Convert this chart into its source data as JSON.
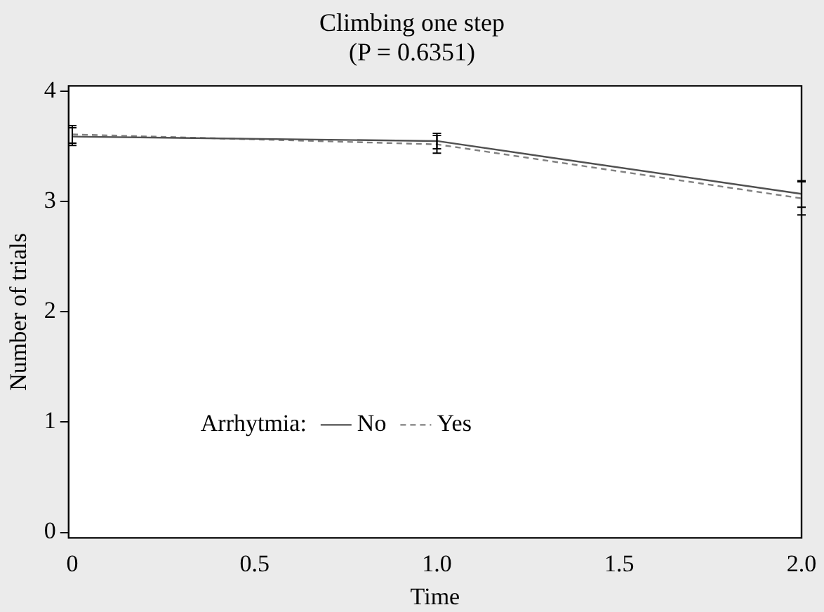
{
  "chart_data": {
    "type": "line",
    "title": "Climbing one step",
    "subtitle": "(P = 0.6351)",
    "xlabel": "Time",
    "ylabel": "Number of trials",
    "legend_title": "Arrhytmia:",
    "legend": "bottom left",
    "x": [
      0,
      1,
      2
    ],
    "series": [
      {
        "name": "No",
        "color": "#505050",
        "line_style": "solid",
        "values": [
          3.59,
          3.55,
          3.07
        ],
        "errors": [
          0.08,
          0.07,
          0.12
        ]
      },
      {
        "name": "Yes",
        "color": "#808080",
        "line_style": "dashed",
        "values": [
          3.61,
          3.52,
          3.03
        ],
        "errors": [
          0.08,
          0.08,
          0.15
        ]
      }
    ],
    "xlim": [
      -0.01,
      2.0
    ],
    "xticks": [
      0,
      0.5,
      {
        "value": 1,
        "label": "1.0"
      },
      1.5,
      {
        "value": 2,
        "label": "2.0"
      }
    ],
    "ylim": [
      -0.05,
      4.05
    ],
    "yticks": [
      0,
      1,
      2,
      3,
      4
    ],
    "grid": false,
    "marker": "none"
  }
}
